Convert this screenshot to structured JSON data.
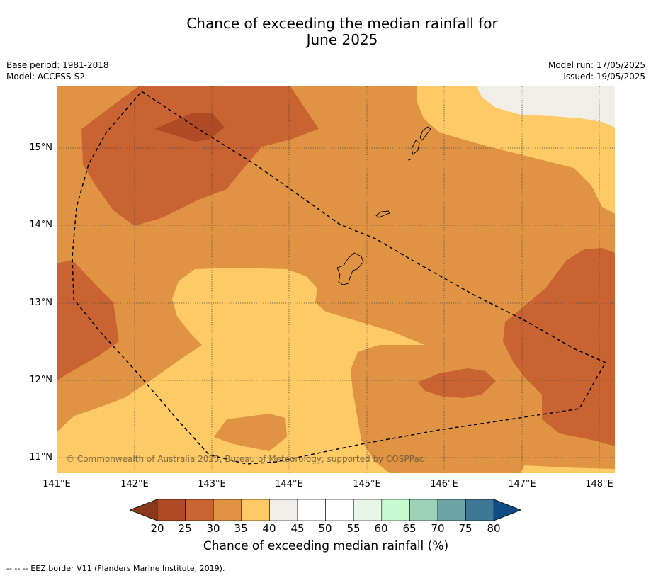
{
  "title_line1": "Chance of exceeding the median rainfall for",
  "title_line2": "June 2025",
  "base_period": "Base period: 1981-2018",
  "model": "Model: ACCESS-S2",
  "model_run": "Model run: 17/05/2025",
  "issued": "Issued: 19/05/2025",
  "copyright": "© Commonwealth of Australia 2025, Bureau of Meteorology, supported by COSPPac",
  "footnote": "--  --  -- EEZ border V11 (Flanders Marine Institute, 2019).",
  "lat_labels": [
    "15°N",
    "14°N",
    "13°N",
    "12°N",
    "11°N"
  ],
  "lon_labels": [
    "141°E",
    "142°E",
    "143°E",
    "144°E",
    "145°E",
    "146°E",
    "147°E",
    "148°E"
  ],
  "colorbar": {
    "title": "Chance of exceeding median rainfall (%)",
    "ticks": [
      "20",
      "25",
      "30",
      "35",
      "40",
      "45",
      "50",
      "55",
      "60",
      "65",
      "70",
      "75",
      "80"
    ],
    "colors": {
      "lt20": "#8a3a1c",
      "20-25": "#b04a26",
      "25-30": "#c96332",
      "30-35": "#e09343",
      "35-40": "#fdca65",
      "40-45": "#f1ede7",
      "45-50": "#ffffff",
      "50-55": "#ffffff",
      "55-60": "#e8f6e8",
      "60-65": "#c8fcd0",
      "65-70": "#9ed2b8",
      "70-75": "#6da4a6",
      "75-80": "#3f7894",
      "gt80": "#0f4c86"
    }
  }
}
